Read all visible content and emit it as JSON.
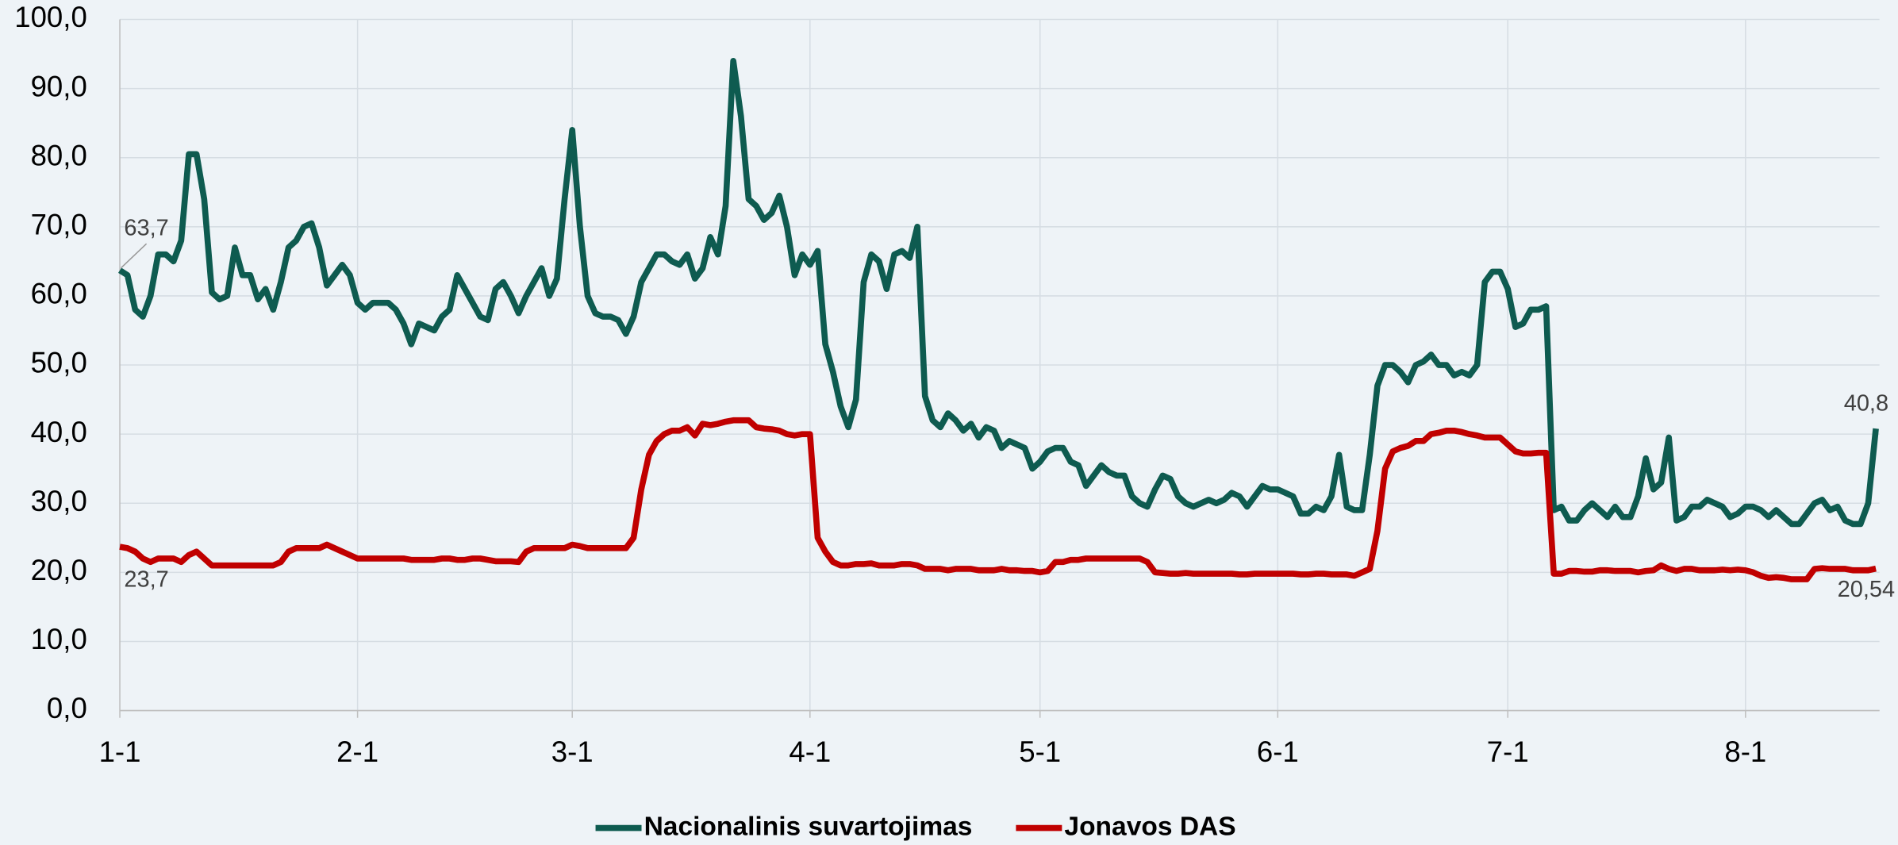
{
  "chart_data": {
    "type": "line",
    "categories": [
      "1-1",
      null,
      null,
      null,
      null,
      null,
      null,
      null,
      null,
      null,
      null,
      null,
      null,
      null,
      null,
      null,
      null,
      null,
      null,
      null,
      null,
      null,
      null,
      null,
      null,
      null,
      null,
      null,
      null,
      null,
      null,
      "2-1",
      null,
      null,
      null,
      null,
      null,
      null,
      null,
      null,
      null,
      null,
      null,
      null,
      null,
      null,
      null,
      null,
      null,
      null,
      null,
      null,
      null,
      null,
      null,
      null,
      null,
      null,
      null,
      "3-1",
      null,
      null,
      null,
      null,
      null,
      null,
      null,
      null,
      null,
      null,
      null,
      null,
      null,
      null,
      null,
      null,
      null,
      null,
      null,
      null,
      null,
      null,
      null,
      null,
      null,
      null,
      null,
      null,
      null,
      null,
      "4-1",
      null,
      null,
      null,
      null,
      null,
      null,
      null,
      null,
      null,
      null,
      null,
      null,
      null,
      null,
      null,
      null,
      null,
      null,
      null,
      null,
      null,
      null,
      null,
      null,
      null,
      null,
      null,
      null,
      null,
      "5-1",
      null,
      null,
      null,
      null,
      null,
      null,
      null,
      null,
      null,
      null,
      null,
      null,
      null,
      null,
      null,
      null,
      null,
      null,
      null,
      null,
      null,
      null,
      null,
      null,
      null,
      null,
      null,
      null,
      null,
      null,
      "6-1",
      null,
      null,
      null,
      null,
      null,
      null,
      null,
      null,
      null,
      null,
      null,
      null,
      null,
      null,
      null,
      null,
      null,
      null,
      null,
      null,
      null,
      null,
      null,
      null,
      null,
      null,
      null,
      null,
      null,
      "7-1",
      null,
      null,
      null,
      null,
      null,
      null,
      null,
      null,
      null,
      null,
      null,
      null,
      null,
      null,
      null,
      null,
      null,
      null,
      null,
      null,
      null,
      null,
      null,
      null,
      null,
      null,
      null,
      null,
      null,
      null,
      "8-1",
      null,
      null,
      null,
      null,
      null,
      null,
      null,
      null,
      null,
      null,
      null,
      null,
      null,
      null,
      null,
      null,
      null
    ],
    "series": [
      {
        "name": "Nacionalinis suvartojimas",
        "color": "#0e5b50",
        "values": [
          63.7,
          63,
          58,
          57,
          60,
          66,
          66,
          65,
          68,
          80.5,
          80.5,
          74,
          60.5,
          59.5,
          60,
          67,
          63,
          63,
          59.5,
          61,
          58,
          62,
          67,
          68,
          70,
          70.5,
          67,
          61.5,
          63,
          64.5,
          63,
          59,
          58,
          59,
          59,
          59,
          58,
          56,
          53,
          56,
          55.5,
          55,
          57,
          58,
          63,
          61,
          59,
          57,
          56.5,
          61,
          62,
          60,
          57.5,
          60,
          62,
          64,
          60,
          62.5,
          74,
          84,
          70,
          60,
          57.5,
          57,
          57,
          56.5,
          54.5,
          57,
          62,
          64,
          66,
          66,
          65,
          64.5,
          66,
          62.5,
          64,
          68.5,
          66,
          73,
          94,
          86,
          74,
          73,
          71,
          72,
          74.5,
          70,
          63,
          66,
          64.5,
          66.5,
          53,
          49,
          44,
          41,
          45,
          62,
          66,
          65,
          61,
          66,
          66.5,
          65.5,
          70,
          45.5,
          42,
          41,
          43,
          42,
          40.5,
          41.5,
          39.5,
          41,
          40.5,
          38,
          39,
          38.5,
          38,
          35,
          36,
          37.5,
          38,
          38,
          36,
          35.5,
          32.5,
          34,
          35.5,
          34.5,
          34,
          34,
          31,
          30,
          29.5,
          32,
          34,
          33.5,
          31,
          30,
          29.5,
          30,
          30.5,
          30,
          30.5,
          31.5,
          31,
          29.5,
          31,
          32.5,
          32,
          32,
          31.5,
          31,
          28.5,
          28.5,
          29.5,
          29,
          31,
          37,
          29.5,
          29,
          29,
          37,
          47,
          50,
          50,
          49,
          47.5,
          50,
          50.5,
          51.5,
          50,
          50,
          48.5,
          49,
          48.5,
          50,
          62,
          63.5,
          63.5,
          61,
          55.5,
          56,
          58,
          58,
          58.5,
          29,
          29.5,
          27.5,
          27.5,
          29,
          30,
          29,
          28,
          29.5,
          28,
          28,
          31,
          36.5,
          32,
          33,
          39.5,
          27.5,
          28,
          29.5,
          29.5,
          30.5,
          30,
          29.5,
          28,
          28.5,
          29.5,
          29.5,
          29,
          28,
          29,
          28,
          27,
          27,
          28.5,
          30,
          30.5,
          29,
          29.5,
          27.5,
          27,
          27,
          30,
          40.8
        ],
        "value_labels": [
          "63,7",
          null,
          null,
          null,
          null,
          null,
          null,
          null,
          null,
          null,
          null,
          null,
          null,
          null,
          null,
          null,
          null,
          null,
          null,
          null,
          null,
          null,
          null,
          null,
          null,
          null,
          null,
          null,
          null,
          null,
          null,
          null,
          null,
          null,
          null,
          null,
          null,
          null,
          null,
          null,
          null,
          null,
          null,
          null,
          null,
          null,
          null,
          null,
          null,
          null,
          null,
          null,
          null,
          null,
          null,
          null,
          null,
          null,
          null,
          null,
          null,
          null,
          null,
          null,
          null,
          null,
          null,
          null,
          null,
          null,
          null,
          null,
          null,
          null,
          null,
          null,
          null,
          null,
          null,
          null,
          null,
          null,
          null,
          null,
          null,
          null,
          null,
          null,
          null,
          null,
          null,
          null,
          null,
          null,
          null,
          null,
          null,
          null,
          null,
          null,
          null,
          null,
          null,
          null,
          null,
          null,
          null,
          null,
          null,
          null,
          null,
          null,
          null,
          null,
          null,
          null,
          null,
          null,
          null,
          null,
          null,
          null,
          null,
          null,
          null,
          null,
          null,
          null,
          null,
          null,
          null,
          null,
          null,
          null,
          null,
          null,
          null,
          null,
          null,
          null,
          null,
          null,
          null,
          null,
          null,
          null,
          null,
          null,
          null,
          null,
          null,
          null,
          null,
          null,
          null,
          null,
          null,
          null,
          null,
          null,
          null,
          null,
          null,
          null,
          null,
          null,
          null,
          null,
          null,
          null,
          null,
          null,
          null,
          null,
          null,
          null,
          null,
          null,
          null,
          null,
          null,
          null,
          null,
          null,
          null,
          null,
          null,
          null,
          null,
          null,
          null,
          null,
          null,
          null,
          null,
          null,
          null,
          null,
          null,
          null,
          null,
          null,
          null,
          null,
          null,
          null,
          null,
          null,
          null,
          null,
          null,
          null,
          null,
          null,
          null,
          null,
          null,
          null,
          null,
          null,
          null,
          null,
          null,
          null,
          null,
          null,
          null,
          null,
          null,
          "40,8"
        ]
      },
      {
        "name": "Jonavos DAS",
        "color": "#c00000",
        "values": [
          23.7,
          23.5,
          23,
          22,
          21.5,
          22,
          22,
          22,
          21.5,
          22.5,
          23,
          22,
          21,
          21,
          21,
          21,
          21,
          21,
          21,
          21,
          21,
          21.5,
          23,
          23.5,
          23.5,
          23.5,
          23.5,
          24,
          23.5,
          23,
          22.5,
          22,
          22,
          22,
          22,
          22,
          22,
          22,
          21.8,
          21.8,
          21.8,
          21.8,
          22,
          22,
          21.8,
          21.8,
          22,
          22,
          21.8,
          21.6,
          21.6,
          21.6,
          21.5,
          23,
          23.5,
          23.5,
          23.5,
          23.5,
          23.5,
          24,
          23.8,
          23.5,
          23.5,
          23.5,
          23.5,
          23.5,
          23.5,
          25,
          32,
          37,
          39,
          40,
          40.5,
          40.5,
          41,
          39.8,
          41.5,
          41.3,
          41.5,
          41.8,
          42,
          42,
          42,
          41,
          40.8,
          40.7,
          40.5,
          40,
          39.8,
          40,
          40,
          25,
          23,
          21.5,
          21,
          21,
          21.2,
          21.2,
          21.3,
          21,
          21,
          21,
          21.2,
          21.2,
          21,
          20.5,
          20.5,
          20.5,
          20.3,
          20.5,
          20.5,
          20.5,
          20.3,
          20.3,
          20.3,
          20.5,
          20.3,
          20.3,
          20.2,
          20.2,
          20,
          20.2,
          21.5,
          21.5,
          21.8,
          21.8,
          22,
          22,
          22,
          22,
          22,
          22,
          22,
          22,
          21.5,
          20,
          19.9,
          19.8,
          19.8,
          19.9,
          19.8,
          19.8,
          19.8,
          19.8,
          19.8,
          19.8,
          19.7,
          19.7,
          19.8,
          19.8,
          19.8,
          19.8,
          19.8,
          19.8,
          19.7,
          19.7,
          19.8,
          19.8,
          19.7,
          19.7,
          19.7,
          19.5,
          20,
          20.5,
          26,
          35,
          37.5,
          38,
          38.3,
          39,
          39,
          40,
          40.2,
          40.5,
          40.5,
          40.3,
          40,
          39.8,
          39.5,
          39.5,
          39.5,
          38.5,
          37.5,
          37.2,
          37.2,
          37.3,
          37.3,
          19.8,
          19.8,
          20.2,
          20.2,
          20.1,
          20.1,
          20.3,
          20.3,
          20.2,
          20.2,
          20.2,
          20,
          20.2,
          20.3,
          21,
          20.5,
          20.2,
          20.5,
          20.5,
          20.3,
          20.3,
          20.3,
          20.4,
          20.3,
          20.4,
          20.3,
          20,
          19.5,
          19.2,
          19.3,
          19.2,
          19,
          19,
          19,
          20.5,
          20.6,
          20.5,
          20.5,
          20.5,
          20.3,
          20.3,
          20.3,
          20.54
        ],
        "value_labels": [
          "23,7",
          null,
          null,
          null,
          null,
          null,
          null,
          null,
          null,
          null,
          null,
          null,
          null,
          null,
          null,
          null,
          null,
          null,
          null,
          null,
          null,
          null,
          null,
          null,
          null,
          null,
          null,
          null,
          null,
          null,
          null,
          null,
          null,
          null,
          null,
          null,
          null,
          null,
          null,
          null,
          null,
          null,
          null,
          null,
          null,
          null,
          null,
          null,
          null,
          null,
          null,
          null,
          null,
          null,
          null,
          null,
          null,
          null,
          null,
          null,
          null,
          null,
          null,
          null,
          null,
          null,
          null,
          null,
          null,
          null,
          null,
          null,
          null,
          null,
          null,
          null,
          null,
          null,
          null,
          null,
          null,
          null,
          null,
          null,
          null,
          null,
          null,
          null,
          null,
          null,
          null,
          null,
          null,
          null,
          null,
          null,
          null,
          null,
          null,
          null,
          null,
          null,
          null,
          null,
          null,
          null,
          null,
          null,
          null,
          null,
          null,
          null,
          null,
          null,
          null,
          null,
          null,
          null,
          null,
          null,
          null,
          null,
          null,
          null,
          null,
          null,
          null,
          null,
          null,
          null,
          null,
          null,
          null,
          null,
          null,
          null,
          null,
          null,
          null,
          null,
          null,
          null,
          null,
          null,
          null,
          null,
          null,
          null,
          null,
          null,
          null,
          null,
          null,
          null,
          null,
          null,
          null,
          null,
          null,
          null,
          null,
          null,
          null,
          null,
          null,
          null,
          null,
          null,
          null,
          null,
          null,
          null,
          null,
          null,
          null,
          null,
          null,
          null,
          null,
          null,
          null,
          null,
          null,
          null,
          null,
          null,
          null,
          null,
          null,
          null,
          null,
          null,
          null,
          null,
          null,
          null,
          null,
          null,
          null,
          null,
          null,
          null,
          null,
          null,
          null,
          null,
          null,
          null,
          null,
          null,
          null,
          null,
          null,
          null,
          null,
          null,
          null,
          null,
          null,
          null,
          null,
          null,
          null,
          null,
          null,
          null,
          null,
          null,
          null,
          "20,54"
        ]
      }
    ],
    "ylim": [
      0,
      100
    ],
    "yticks": [
      {
        "value": 0,
        "label": "0,0"
      },
      {
        "value": 10,
        "label": "10,0"
      },
      {
        "value": 20,
        "label": "20,0"
      },
      {
        "value": 30,
        "label": "30,0"
      },
      {
        "value": 40,
        "label": "40,0"
      },
      {
        "value": 50,
        "label": "50,0"
      },
      {
        "value": 60,
        "label": "60,0"
      },
      {
        "value": 70,
        "label": "70,0"
      },
      {
        "value": 80,
        "label": "80,0"
      },
      {
        "value": 90,
        "label": "90,0"
      },
      {
        "value": 100,
        "label": "100,0"
      }
    ],
    "grid": true,
    "legend": "bottom"
  }
}
